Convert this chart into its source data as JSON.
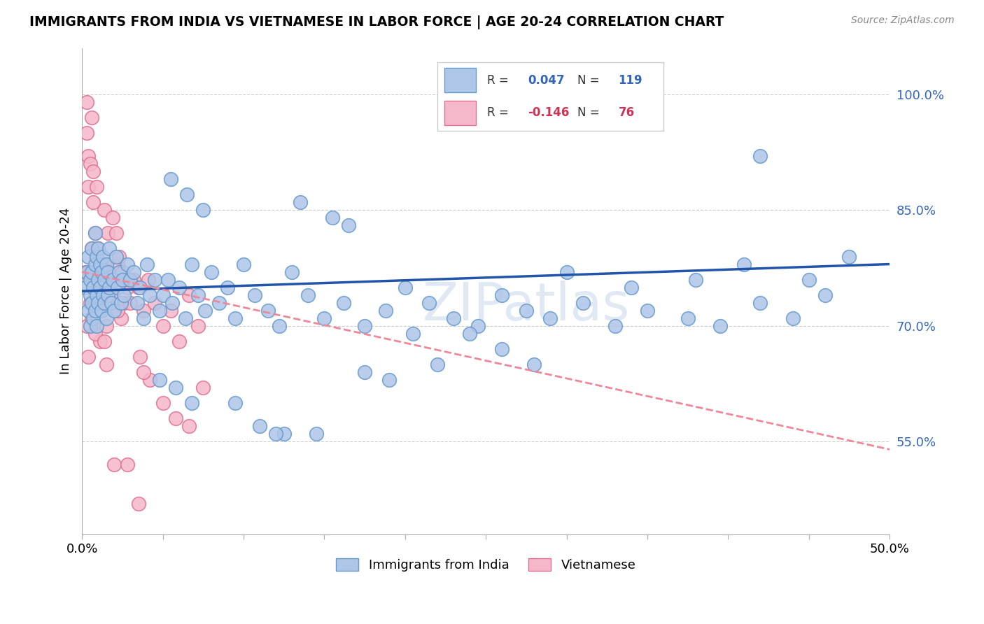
{
  "title": "IMMIGRANTS FROM INDIA VS VIETNAMESE IN LABOR FORCE | AGE 20-24 CORRELATION CHART",
  "source": "Source: ZipAtlas.com",
  "ylabel": "In Labor Force | Age 20-24",
  "ytick_labels": [
    "55.0%",
    "70.0%",
    "85.0%",
    "100.0%"
  ],
  "ytick_values": [
    0.55,
    0.7,
    0.85,
    1.0
  ],
  "xlim": [
    0.0,
    0.5
  ],
  "ylim": [
    0.43,
    1.06
  ],
  "legend_R_india": "0.047",
  "legend_N_india": "119",
  "legend_R_viet": "-0.146",
  "legend_N_viet": "76",
  "india_color": "#aec6e8",
  "india_edge_color": "#6699cc",
  "viet_color": "#f5b8cb",
  "viet_edge_color": "#e07090",
  "trend_india_color": "#2255aa",
  "trend_viet_color": "#ee8899",
  "watermark": "ZIPatlas",
  "background_color": "#ffffff",
  "grid_color": "#cccccc",
  "india_trend_x": [
    0.0,
    0.5
  ],
  "india_trend_y": [
    0.745,
    0.78
  ],
  "viet_trend_x": [
    0.0,
    0.5
  ],
  "viet_trend_y": [
    0.77,
    0.54
  ],
  "india_x": [
    0.002,
    0.003,
    0.004,
    0.004,
    0.005,
    0.005,
    0.005,
    0.006,
    0.006,
    0.006,
    0.007,
    0.007,
    0.008,
    0.008,
    0.008,
    0.009,
    0.009,
    0.009,
    0.01,
    0.01,
    0.01,
    0.011,
    0.011,
    0.012,
    0.012,
    0.013,
    0.013,
    0.014,
    0.014,
    0.015,
    0.015,
    0.016,
    0.016,
    0.017,
    0.017,
    0.018,
    0.019,
    0.02,
    0.021,
    0.022,
    0.023,
    0.024,
    0.025,
    0.026,
    0.028,
    0.03,
    0.032,
    0.034,
    0.036,
    0.038,
    0.04,
    0.042,
    0.045,
    0.048,
    0.05,
    0.053,
    0.056,
    0.06,
    0.064,
    0.068,
    0.072,
    0.076,
    0.08,
    0.085,
    0.09,
    0.095,
    0.1,
    0.107,
    0.115,
    0.122,
    0.13,
    0.14,
    0.15,
    0.162,
    0.175,
    0.188,
    0.2,
    0.215,
    0.23,
    0.245,
    0.26,
    0.275,
    0.29,
    0.31,
    0.33,
    0.35,
    0.375,
    0.395,
    0.42,
    0.44,
    0.46,
    0.055,
    0.065,
    0.075,
    0.135,
    0.155,
    0.165,
    0.42,
    0.34,
    0.38,
    0.175,
    0.095,
    0.11,
    0.125,
    0.24,
    0.26,
    0.28,
    0.3,
    0.048,
    0.058,
    0.068,
    0.19,
    0.205,
    0.22,
    0.12,
    0.145,
    0.41,
    0.45,
    0.475
  ],
  "india_y": [
    0.75,
    0.77,
    0.72,
    0.79,
    0.74,
    0.76,
    0.7,
    0.73,
    0.77,
    0.8,
    0.71,
    0.75,
    0.72,
    0.78,
    0.82,
    0.7,
    0.74,
    0.79,
    0.73,
    0.76,
    0.8,
    0.75,
    0.78,
    0.72,
    0.77,
    0.74,
    0.79,
    0.73,
    0.76,
    0.71,
    0.78,
    0.74,
    0.77,
    0.75,
    0.8,
    0.73,
    0.76,
    0.72,
    0.79,
    0.75,
    0.77,
    0.73,
    0.76,
    0.74,
    0.78,
    0.76,
    0.77,
    0.73,
    0.75,
    0.71,
    0.78,
    0.74,
    0.76,
    0.72,
    0.74,
    0.76,
    0.73,
    0.75,
    0.71,
    0.78,
    0.74,
    0.72,
    0.77,
    0.73,
    0.75,
    0.71,
    0.78,
    0.74,
    0.72,
    0.7,
    0.77,
    0.74,
    0.71,
    0.73,
    0.7,
    0.72,
    0.75,
    0.73,
    0.71,
    0.7,
    0.74,
    0.72,
    0.71,
    0.73,
    0.7,
    0.72,
    0.71,
    0.7,
    0.73,
    0.71,
    0.74,
    0.89,
    0.87,
    0.85,
    0.86,
    0.84,
    0.83,
    0.92,
    0.75,
    0.76,
    0.64,
    0.6,
    0.57,
    0.56,
    0.69,
    0.67,
    0.65,
    0.77,
    0.63,
    0.62,
    0.6,
    0.63,
    0.69,
    0.65,
    0.56,
    0.56,
    0.78,
    0.76,
    0.79
  ],
  "viet_x": [
    0.002,
    0.003,
    0.003,
    0.004,
    0.004,
    0.005,
    0.005,
    0.006,
    0.006,
    0.007,
    0.007,
    0.008,
    0.008,
    0.009,
    0.009,
    0.01,
    0.01,
    0.011,
    0.012,
    0.013,
    0.014,
    0.015,
    0.016,
    0.017,
    0.018,
    0.019,
    0.02,
    0.021,
    0.022,
    0.023,
    0.024,
    0.025,
    0.026,
    0.028,
    0.03,
    0.032,
    0.035,
    0.038,
    0.041,
    0.045,
    0.05,
    0.055,
    0.06,
    0.066,
    0.072,
    0.003,
    0.005,
    0.007,
    0.009,
    0.011,
    0.013,
    0.015,
    0.004,
    0.006,
    0.008,
    0.01,
    0.012,
    0.014,
    0.016,
    0.019,
    0.022,
    0.026,
    0.03,
    0.036,
    0.042,
    0.05,
    0.058,
    0.066,
    0.075,
    0.02,
    0.028,
    0.035,
    0.015,
    0.008,
    0.012,
    0.038
  ],
  "viet_y": [
    0.77,
    0.99,
    0.95,
    0.92,
    0.88,
    0.77,
    0.91,
    0.97,
    0.8,
    0.9,
    0.86,
    0.76,
    0.82,
    0.73,
    0.88,
    0.76,
    0.8,
    0.76,
    0.78,
    0.75,
    0.85,
    0.78,
    0.82,
    0.77,
    0.74,
    0.84,
    0.76,
    0.82,
    0.78,
    0.79,
    0.71,
    0.77,
    0.73,
    0.75,
    0.76,
    0.76,
    0.75,
    0.72,
    0.76,
    0.73,
    0.7,
    0.72,
    0.68,
    0.74,
    0.7,
    0.7,
    0.73,
    0.76,
    0.72,
    0.68,
    0.74,
    0.7,
    0.66,
    0.71,
    0.69,
    0.75,
    0.74,
    0.68,
    0.77,
    0.74,
    0.72,
    0.76,
    0.73,
    0.66,
    0.63,
    0.6,
    0.58,
    0.57,
    0.62,
    0.52,
    0.52,
    0.47,
    0.65,
    0.73,
    0.72,
    0.64
  ]
}
